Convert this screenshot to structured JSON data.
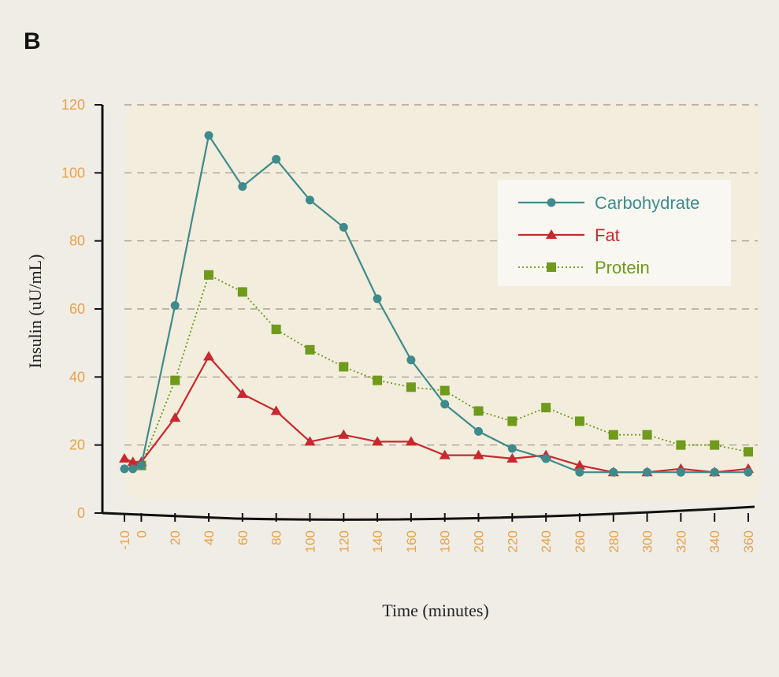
{
  "panel_label": "B",
  "chart_data": {
    "type": "line",
    "title": "",
    "xlabel": "Time (minutes)",
    "ylabel": "Insulin (uU/mL)",
    "ylim": [
      0,
      120
    ],
    "yticks": [
      0,
      20,
      40,
      60,
      80,
      100,
      120
    ],
    "x": [
      -10,
      -5,
      0,
      20,
      40,
      60,
      80,
      100,
      120,
      140,
      160,
      180,
      200,
      220,
      240,
      260,
      280,
      300,
      320,
      340,
      360
    ],
    "xtick_labels": [
      "-10",
      "0",
      "20",
      "40",
      "60",
      "80",
      "100",
      "120",
      "140",
      "160",
      "180",
      "200",
      "220",
      "240",
      "260",
      "280",
      "300",
      "320",
      "340",
      "360"
    ],
    "xtick_values": [
      -10,
      0,
      20,
      40,
      60,
      80,
      100,
      120,
      140,
      160,
      180,
      200,
      220,
      240,
      260,
      280,
      300,
      320,
      340,
      360
    ],
    "grid": "horizontal dashed",
    "legend_position": "top-right",
    "series": [
      {
        "name": "Carbohydrate",
        "color": "#3f8a8c",
        "marker": "circle",
        "line_style": "solid",
        "values": [
          13,
          13,
          14,
          61,
          111,
          96,
          104,
          92,
          84,
          63,
          45,
          32,
          24,
          19,
          16,
          12,
          12,
          12,
          12,
          12,
          12
        ]
      },
      {
        "name": "Fat",
        "color": "#c8282e",
        "marker": "triangle",
        "line_style": "solid",
        "values": [
          16,
          15,
          15,
          28,
          46,
          35,
          30,
          21,
          23,
          21,
          21,
          17,
          17,
          16,
          17,
          14,
          12,
          12,
          13,
          12,
          13
        ]
      },
      {
        "name": "Protein",
        "color": "#6f9a1c",
        "marker": "square",
        "line_style": "dotted",
        "values": [
          null,
          null,
          14,
          39,
          70,
          65,
          54,
          48,
          43,
          39,
          37,
          36,
          30,
          27,
          31,
          27,
          23,
          23,
          20,
          20,
          18
        ]
      }
    ]
  }
}
